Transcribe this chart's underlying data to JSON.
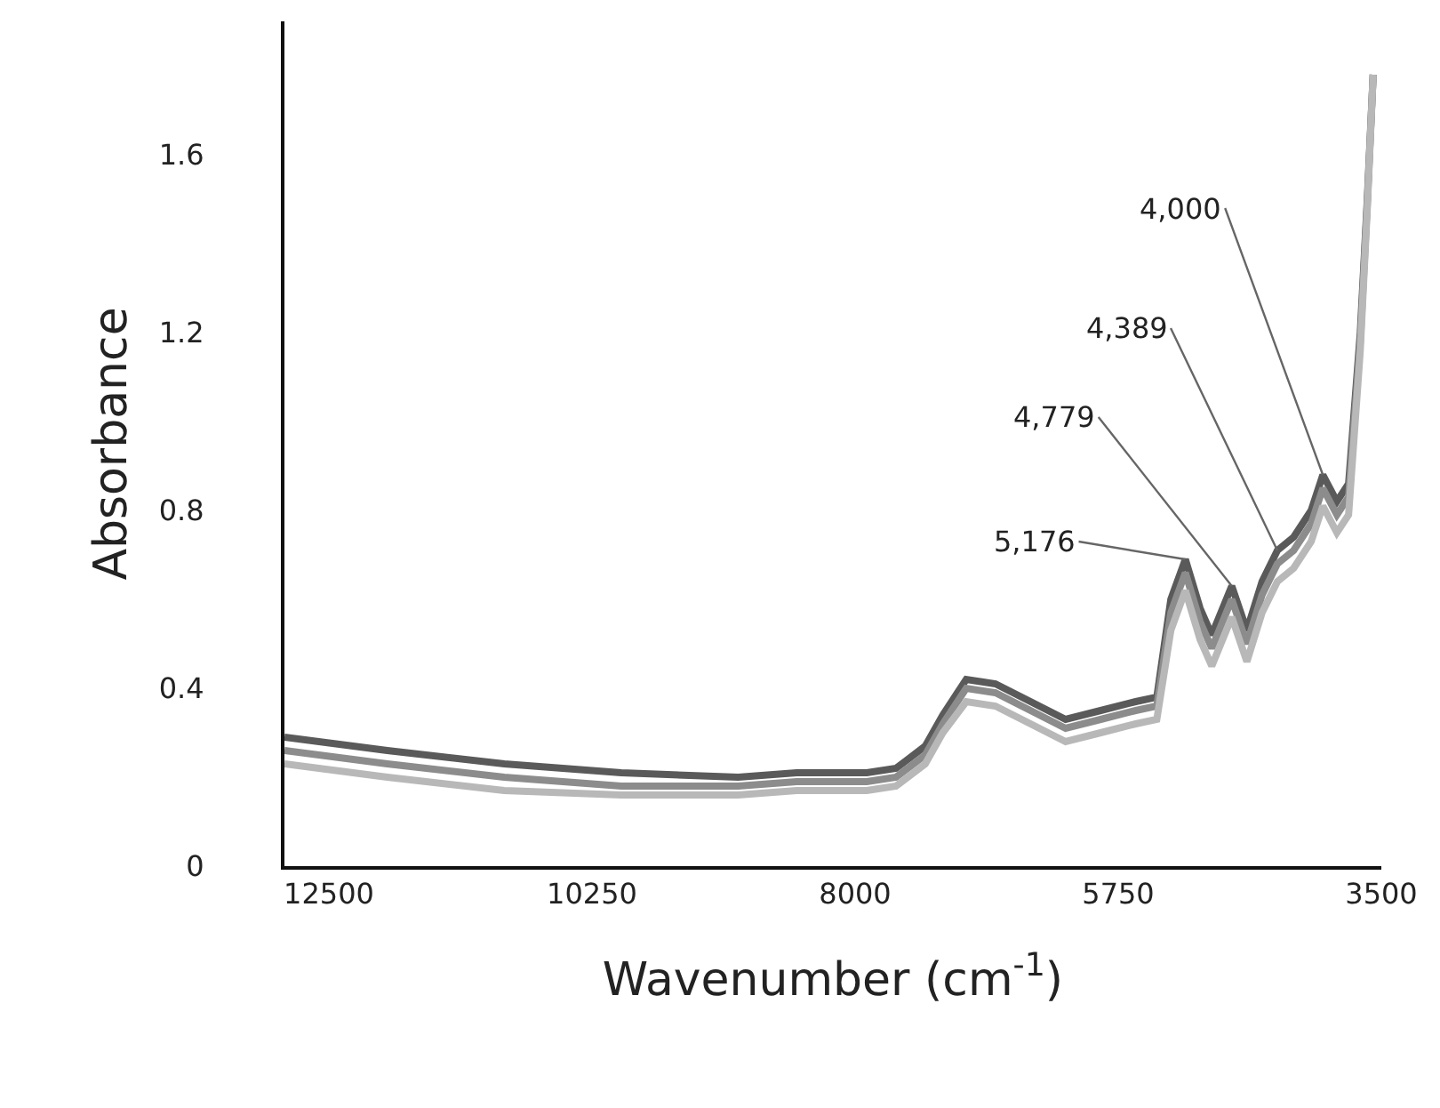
{
  "chart_data": {
    "type": "line",
    "xlabel": "Wavenumber (cm$^{-1}$)",
    "ylabel": "Absorbance",
    "xlim": [
      12880,
      3500
    ],
    "xticks": [
      {
        "value": 12500,
        "label": "12500"
      },
      {
        "value": 10250,
        "label": "10250"
      },
      {
        "value": 8000,
        "label": "8000"
      },
      {
        "value": 5750,
        "label": "5750"
      },
      {
        "value": 3500,
        "label": "3500"
      }
    ],
    "ylim": [
      0,
      1.9
    ],
    "yticks": [
      0,
      0.4,
      0.8,
      1.2,
      1.6
    ],
    "x": [
      12880,
      12000,
      11000,
      10000,
      9000,
      8500,
      7900,
      7650,
      7400,
      7250,
      7050,
      6800,
      6500,
      6200,
      5900,
      5600,
      5420,
      5300,
      5176,
      5050,
      4950,
      4779,
      4650,
      4520,
      4389,
      4250,
      4100,
      4000,
      3880,
      3780,
      3680,
      3620,
      3570
    ],
    "series": [
      {
        "color": "#5a5a5a",
        "values": [
          0.29,
          0.26,
          0.23,
          0.21,
          0.2,
          0.21,
          0.21,
          0.22,
          0.27,
          0.34,
          0.42,
          0.41,
          0.37,
          0.33,
          0.35,
          0.37,
          0.38,
          0.6,
          0.69,
          0.58,
          0.52,
          0.63,
          0.53,
          0.64,
          0.71,
          0.74,
          0.8,
          0.88,
          0.82,
          0.86,
          1.2,
          1.5,
          1.78
        ]
      },
      {
        "color": "#8c8c8c",
        "values": [
          0.26,
          0.23,
          0.2,
          0.18,
          0.18,
          0.19,
          0.19,
          0.2,
          0.25,
          0.32,
          0.4,
          0.39,
          0.35,
          0.31,
          0.33,
          0.35,
          0.36,
          0.57,
          0.66,
          0.55,
          0.49,
          0.6,
          0.5,
          0.61,
          0.68,
          0.71,
          0.77,
          0.85,
          0.79,
          0.83,
          1.18,
          1.49,
          1.78
        ]
      },
      {
        "color": "#b8b8b8",
        "values": [
          0.23,
          0.2,
          0.17,
          0.16,
          0.16,
          0.17,
          0.17,
          0.18,
          0.23,
          0.3,
          0.37,
          0.36,
          0.32,
          0.28,
          0.3,
          0.32,
          0.33,
          0.53,
          0.62,
          0.51,
          0.45,
          0.56,
          0.46,
          0.57,
          0.64,
          0.67,
          0.73,
          0.81,
          0.75,
          0.79,
          1.16,
          1.48,
          1.78
        ]
      }
    ],
    "annotations": [
      {
        "text": "4,000",
        "x": 4000,
        "y": 0.88
      },
      {
        "text": "4,389",
        "x": 4389,
        "y": 0.71
      },
      {
        "text": "4,779",
        "x": 4779,
        "y": 0.63
      },
      {
        "text": "5,176",
        "x": 5176,
        "y": 0.69
      }
    ],
    "grid": false,
    "marker": "none",
    "line_style": "solid"
  }
}
